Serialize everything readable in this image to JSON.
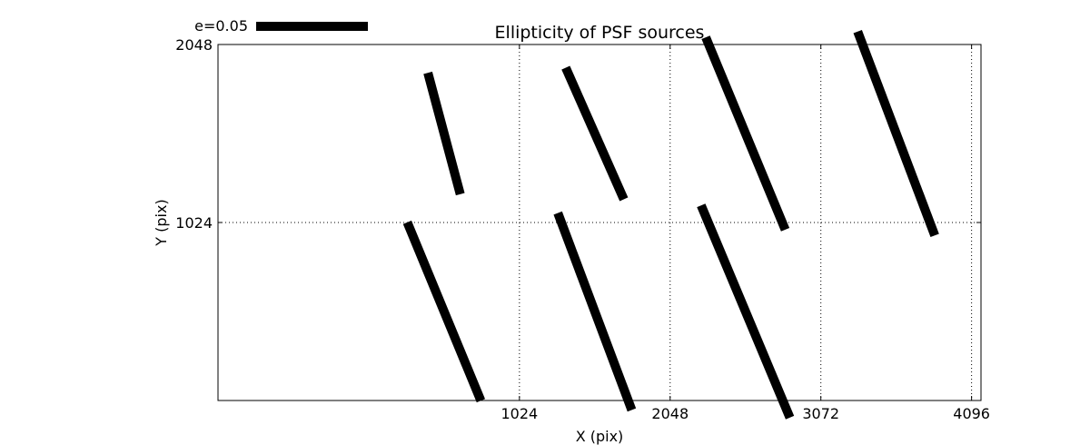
{
  "chart_data": {
    "type": "scatter",
    "title": "Ellipticity of PSF sources",
    "xlabel": "X (pix)",
    "ylabel": "Y (pix)",
    "xlim": [
      -1024,
      4160
    ],
    "ylim": [
      0,
      2048
    ],
    "x_ticks": [
      1024,
      2048,
      3072,
      4096
    ],
    "y_ticks": [
      1024,
      2048
    ],
    "x_tick_labels": [
      "1024",
      "2048",
      "3072",
      "4096"
    ],
    "y_tick_labels": [
      "1024",
      "2048"
    ],
    "grid": true,
    "line_color": "#000000",
    "scale_key": {
      "label": "e=0.05",
      "e": 0.05
    },
    "sticks": [
      {
        "x": 512,
        "y": 1536,
        "dx": -220,
        "dy": 698
      },
      {
        "x": 1536,
        "y": 1536,
        "dx": -395,
        "dy": 757
      },
      {
        "x": 2560,
        "y": 1536,
        "dx": -540,
        "dy": 1106
      },
      {
        "x": 3584,
        "y": 1536,
        "dx": -524,
        "dy": 1173
      },
      {
        "x": 512,
        "y": 512,
        "dx": -500,
        "dy": 1026
      },
      {
        "x": 1536,
        "y": 512,
        "dx": -502,
        "dy": 1133
      },
      {
        "x": 2560,
        "y": 512,
        "dx": -603,
        "dy": 1220
      }
    ]
  }
}
